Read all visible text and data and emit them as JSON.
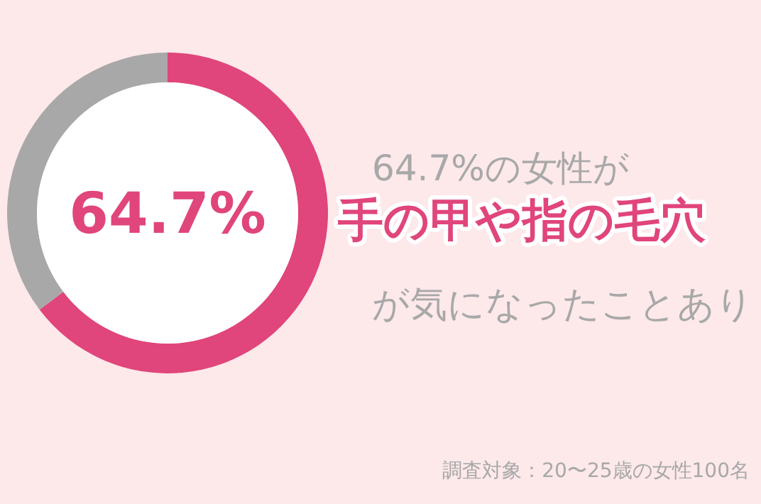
{
  "chart_data": {
    "type": "donut",
    "categories": [
      null,
      null
    ],
    "values": [
      64.7,
      35.3
    ],
    "colors": [
      "#e0457b",
      "#a8a8a8"
    ],
    "value_labels": [
      "64.7%",
      null
    ],
    "annotations": [
      "64.7%の女性が",
      "手の甲や指の毛穴",
      "が気になったことあり",
      "調査対象：20〜25歳の女性100名"
    ]
  }
}
